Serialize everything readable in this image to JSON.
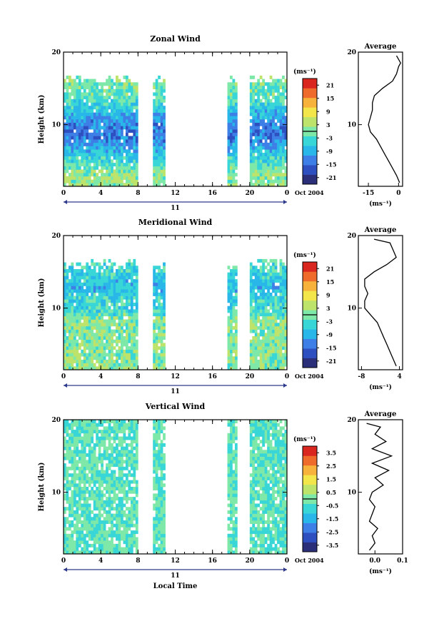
{
  "chart_data": [
    {
      "type": "heatmap",
      "title": "Zonal Wind",
      "xlabel": "",
      "ylabel": "Height (km)",
      "x_ticks": [
        "0",
        "4",
        "8",
        "12",
        "16",
        "20",
        "0"
      ],
      "y_ticks": [
        "20",
        "10"
      ],
      "xlim": [
        0,
        24
      ],
      "ylim": [
        1.5,
        20
      ],
      "date_axis": {
        "day": "11",
        "month_label": "Oct 2004"
      },
      "colorbar": {
        "unit": "(ms⁻¹)",
        "ticks": [
          "21",
          "15",
          "9",
          "3",
          "-3",
          "-9",
          "-15",
          "-21"
        ],
        "range": [
          -24,
          24
        ]
      },
      "data_gaps_hours": [
        [
          7.9,
          9.6
        ],
        [
          10.9,
          17.5
        ],
        [
          18.6,
          20.0
        ]
      ],
      "profile": {
        "title": "Average",
        "xlabel": "(ms⁻¹)",
        "x_ticks": [
          "-15",
          "0"
        ],
        "y_ticks": [
          "20",
          "10"
        ],
        "xlim": [
          -20,
          2
        ],
        "height_km": [
          2.0,
          3.0,
          4.0,
          5.0,
          6.0,
          7.0,
          8.0,
          9.0,
          10.0,
          11.0,
          12.0,
          13.0,
          14.0,
          15.0,
          16.0,
          17.0,
          18.0,
          18.5,
          19.0,
          19.5
        ],
        "value_ms": [
          0.5,
          -1,
          -3,
          -5,
          -7,
          -9,
          -11,
          -14,
          -15,
          -14,
          -13,
          -13,
          -12,
          -8,
          -3,
          -1,
          0,
          1,
          0,
          -1
        ]
      }
    },
    {
      "type": "heatmap",
      "title": "Meridional Wind",
      "xlabel": "",
      "ylabel": "Height (km)",
      "x_ticks": [
        "0",
        "4",
        "8",
        "12",
        "16",
        "20",
        "0"
      ],
      "y_ticks": [
        "20",
        "10"
      ],
      "xlim": [
        0,
        24
      ],
      "ylim": [
        1.5,
        20
      ],
      "date_axis": {
        "day": "11",
        "month_label": "Oct 2004"
      },
      "colorbar": {
        "unit": "(ms⁻¹)",
        "ticks": [
          "21",
          "15",
          "9",
          "3",
          "-3",
          "-9",
          "-15",
          "-21"
        ],
        "range": [
          -24,
          24
        ]
      },
      "data_gaps_hours": [
        [
          7.9,
          9.6
        ],
        [
          10.9,
          17.5
        ],
        [
          18.6,
          20.0
        ]
      ],
      "profile": {
        "title": "Average",
        "xlabel": "(ms⁻¹)",
        "x_ticks": [
          "-8",
          "4"
        ],
        "y_ticks": [
          "20",
          "10"
        ],
        "xlim": [
          -9,
          5
        ],
        "height_km": [
          2.0,
          3.0,
          4.0,
          5.0,
          6.0,
          7.0,
          8.0,
          9.0,
          10.0,
          11.0,
          12.0,
          13.0,
          14.0,
          15.0,
          16.0,
          17.0,
          18.0,
          19.0,
          19.5
        ],
        "value_ms": [
          3,
          2,
          1,
          0,
          -1,
          -2,
          -3,
          -5,
          -7,
          -7,
          -6,
          -7,
          -7,
          -4,
          0,
          3,
          2,
          1,
          -4
        ]
      }
    },
    {
      "type": "heatmap",
      "title": "Vertical Wind",
      "xlabel": "Local Time",
      "ylabel": "Height (km)",
      "x_ticks": [
        "0",
        "4",
        "8",
        "12",
        "16",
        "20",
        "0"
      ],
      "y_ticks": [
        "20",
        "10"
      ],
      "xlim": [
        0,
        24
      ],
      "ylim": [
        1.5,
        20
      ],
      "date_axis": {
        "day": "11",
        "month_label": "Oct 2004"
      },
      "colorbar": {
        "unit": "(ms⁻¹)",
        "ticks": [
          "3.5",
          "2.5",
          "1.5",
          "0.5",
          "-0.5",
          "-1.5",
          "-2.5",
          "-3.5"
        ],
        "range": [
          -4,
          4
        ]
      },
      "data_gaps_hours": [
        [
          7.9,
          9.6
        ],
        [
          10.9,
          17.5
        ],
        [
          18.6,
          20.0
        ]
      ],
      "profile": {
        "title": "Average",
        "xlabel": "(ms⁻¹)",
        "x_ticks": [
          "0.0",
          "0.1"
        ],
        "y_ticks": [
          "20",
          "10"
        ],
        "xlim": [
          -0.06,
          0.1
        ],
        "height_km": [
          2.0,
          3.0,
          4.0,
          5.0,
          6.0,
          7.0,
          8.0,
          9.0,
          10.0,
          11.0,
          12.0,
          13.0,
          14.0,
          15.0,
          16.0,
          17.0,
          18.0,
          19.0,
          19.5
        ],
        "value_ms": [
          -0.02,
          0.0,
          -0.01,
          0.01,
          -0.02,
          -0.01,
          0.0,
          -0.02,
          -0.01,
          0.03,
          0.0,
          0.05,
          -0.01,
          0.06,
          -0.01,
          0.04,
          0.0,
          0.02,
          -0.03
        ]
      }
    }
  ]
}
